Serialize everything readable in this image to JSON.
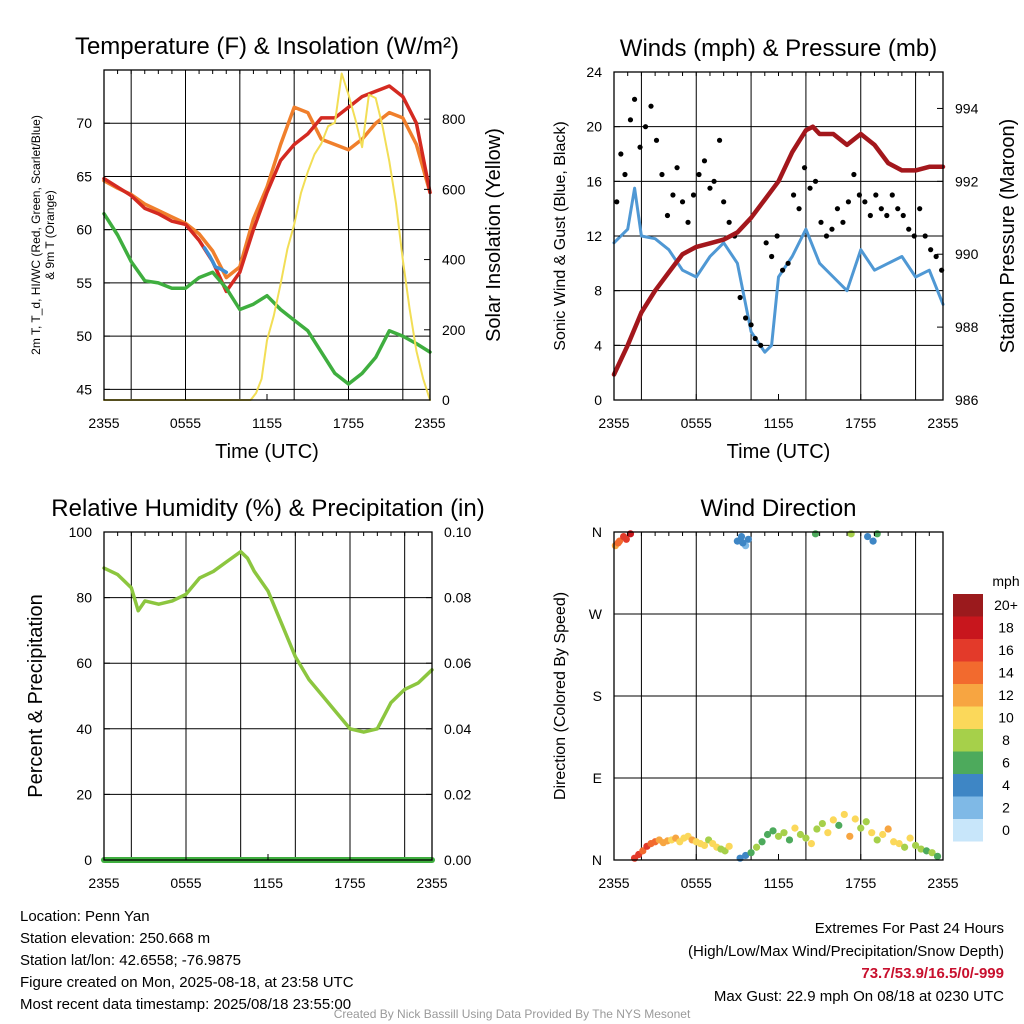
{
  "colors": {
    "temp": "#d42a21",
    "dewpoint": "#3fae3f",
    "heat_index": "#3d8ed6",
    "temp_9m": "#f07f2c",
    "insolation": "#f2de56",
    "wind": "#4f98d4",
    "gust": "#000000",
    "pressure": "#a3171c",
    "rh": "#8cc63f",
    "precip": "#3fae3f"
  },
  "charts": [
    {
      "id": "temp",
      "type": "line",
      "title": "Temperature (F) & Insolation (W/m²)",
      "xlabel": "Time (UTC)",
      "ylabel_lines": [
        "2m T, T_d, HI/WC (Red, Green, Scarlet/Blue)",
        "& 9m T (Orange)"
      ],
      "y2label": "Solar Insolation (Yellow)",
      "xticks": [
        "2355",
        "0555",
        "1155",
        "1755",
        "2355"
      ],
      "ylim": [
        44,
        75
      ],
      "yticks": [
        "45",
        "50",
        "55",
        "60",
        "65",
        "70"
      ],
      "y2lim": [
        0,
        940
      ],
      "y2ticks": [
        "0",
        "200",
        "400",
        "600",
        "800"
      ],
      "series": [
        {
          "key": "temp_9m",
          "x": [
            0,
            1,
            2,
            3,
            4,
            5,
            6,
            7,
            8,
            9,
            10,
            11,
            12,
            13,
            14,
            15,
            16,
            17,
            18,
            19,
            20,
            21,
            22,
            23,
            24
          ],
          "values": [
            64.6,
            63.9,
            63.3,
            62.4,
            61.8,
            61.2,
            60.6,
            59.6,
            58.0,
            55.5,
            56.5,
            61.0,
            64.0,
            68.0,
            71.5,
            71.0,
            68.5,
            68.0,
            67.5,
            68.5,
            70.0,
            71.0,
            70.5,
            68.0,
            63.5
          ]
        },
        {
          "key": "temp",
          "x": [
            0,
            1,
            2,
            3,
            4,
            5,
            6,
            7,
            8,
            9,
            10,
            11,
            12,
            13,
            14,
            15,
            16,
            17,
            18,
            19,
            20,
            21,
            22,
            23,
            24
          ],
          "values": [
            64.8,
            64.0,
            63.2,
            62.0,
            61.5,
            60.8,
            60.5,
            59.0,
            57.0,
            54.2,
            56.0,
            60.0,
            63.5,
            66.5,
            68.0,
            69.0,
            70.5,
            70.5,
            71.5,
            72.5,
            73.0,
            73.5,
            72.5,
            70.0,
            63.5
          ]
        },
        {
          "key": "heat_index",
          "x": [
            7.4,
            7.8,
            8.2,
            8.6,
            9.0
          ],
          "values": [
            58.3,
            57.5,
            56.5,
            56.3,
            56.0
          ]
        },
        {
          "key": "dewpoint",
          "x": [
            0,
            1,
            2,
            3,
            4,
            5,
            6,
            7,
            8,
            9,
            10,
            11,
            12,
            13,
            14,
            15,
            16,
            17,
            18,
            19,
            20,
            21,
            22,
            23,
            24
          ],
          "values": [
            61.5,
            59.5,
            57.0,
            55.2,
            55.0,
            54.5,
            54.5,
            55.5,
            56.0,
            54.5,
            52.5,
            53.0,
            53.8,
            52.5,
            51.5,
            50.5,
            48.5,
            46.5,
            45.5,
            46.5,
            48.0,
            50.5,
            50.0,
            49.3,
            48.5
          ]
        },
        {
          "key": "insolation",
          "axis": "y2",
          "x": [
            0,
            10.8,
            11.2,
            11.6,
            12,
            12.5,
            13,
            13.5,
            14,
            14.5,
            15,
            15.5,
            16,
            16.5,
            17,
            17.5,
            18,
            18.5,
            19,
            19.5,
            20,
            20.5,
            21,
            21.5,
            22,
            22.5,
            23,
            23.5,
            24
          ],
          "values": [
            0,
            0,
            20,
            60,
            170,
            240,
            330,
            430,
            500,
            590,
            650,
            700,
            730,
            780,
            790,
            930,
            870,
            800,
            720,
            870,
            860,
            780,
            680,
            560,
            400,
            260,
            140,
            60,
            0
          ]
        }
      ]
    },
    {
      "id": "wind",
      "type": "line+scatter",
      "title": "Winds (mph) & Pressure (mb)",
      "xlabel": "Time (UTC)",
      "ylabel": "Sonic Wind & Gust (Blue, Black)",
      "y2label": "Station Pressure (Maroon)",
      "xticks": [
        "2355",
        "0555",
        "1155",
        "1755",
        "2355"
      ],
      "ylim": [
        0,
        24
      ],
      "yticks": [
        "0",
        "4",
        "8",
        "12",
        "16",
        "20",
        "24"
      ],
      "y2lim": [
        986,
        995
      ],
      "y2ticks": [
        "986",
        "988",
        "990",
        "992",
        "994"
      ],
      "series": [
        {
          "key": "wind",
          "x": [
            0,
            1,
            1.5,
            2,
            3,
            4,
            5,
            6,
            7,
            8,
            9,
            10,
            11,
            11.5,
            12,
            13,
            14,
            15,
            16,
            17,
            18,
            19,
            20,
            21,
            22,
            23,
            24
          ],
          "values": [
            11.5,
            12.5,
            15.5,
            12.0,
            11.8,
            11.0,
            9.5,
            9.0,
            10.5,
            11.5,
            10.0,
            5.0,
            3.5,
            4.0,
            9.0,
            10.5,
            12.5,
            10.0,
            9.0,
            8.0,
            11.0,
            9.5,
            10.0,
            10.5,
            9.0,
            9.5,
            7.0
          ]
        },
        {
          "key": "gust",
          "x": [
            0.2,
            0.5,
            0.8,
            1.2,
            1.5,
            1.9,
            2.3,
            2.7,
            3.1,
            3.5,
            3.9,
            4.3,
            4.6,
            5.0,
            5.4,
            5.8,
            6.2,
            6.6,
            7.0,
            7.3,
            7.7,
            8.0,
            8.4,
            8.8,
            9.2,
            9.6,
            10.0,
            10.3,
            10.7,
            11.1,
            11.5,
            11.9,
            12.3,
            12.7,
            13.1,
            13.5,
            13.9,
            14.3,
            14.7,
            15.1,
            15.5,
            15.9,
            16.3,
            16.7,
            17.1,
            17.5,
            17.9,
            18.3,
            18.7,
            19.1,
            19.5,
            19.9,
            20.3,
            20.7,
            21.1,
            21.5,
            21.9,
            22.3,
            22.7,
            23.1,
            23.5,
            23.9
          ],
          "values": [
            14.5,
            18.0,
            16.5,
            20.5,
            22.0,
            18.5,
            20.0,
            21.5,
            19.0,
            16.5,
            13.5,
            15.0,
            17.0,
            14.5,
            13.0,
            15.0,
            16.5,
            17.5,
            15.5,
            16.0,
            19.0,
            14.5,
            13.0,
            12.0,
            7.5,
            6.0,
            5.5,
            4.5,
            4.0,
            11.5,
            10.5,
            12.0,
            9.5,
            10.0,
            15.0,
            14.0,
            17.0,
            15.5,
            16.0,
            13.0,
            12.0,
            12.5,
            14.0,
            13.0,
            14.5,
            16.5,
            15.0,
            14.5,
            13.5,
            15.0,
            14.0,
            13.5,
            15.0,
            14.0,
            13.5,
            12.5,
            12.0,
            14.0,
            12.0,
            11.0,
            10.5,
            9.5
          ]
        },
        {
          "key": "pressure",
          "axis": "y2",
          "x": [
            0,
            1,
            2,
            3,
            4,
            5,
            6,
            7,
            8,
            9,
            10,
            11,
            12,
            13,
            14,
            14.5,
            15,
            16,
            17,
            18,
            19,
            20,
            21,
            22,
            23,
            24
          ],
          "values": [
            986.7,
            987.5,
            988.4,
            989.0,
            989.5,
            990.0,
            990.2,
            990.3,
            990.4,
            990.6,
            991.0,
            991.5,
            992.0,
            992.8,
            993.4,
            993.5,
            993.3,
            993.3,
            993.0,
            993.3,
            993.0,
            992.5,
            992.3,
            992.3,
            992.4,
            992.4
          ]
        }
      ]
    },
    {
      "id": "rh",
      "type": "line",
      "title": "Relative Humidity (%) & Precipitation (in)",
      "ylabel": "Percent & Precipitation",
      "xticks": [
        "2355",
        "0555",
        "1155",
        "1755",
        "2355"
      ],
      "ylim": [
        0,
        100
      ],
      "yticks": [
        "0",
        "20",
        "40",
        "60",
        "80",
        "100"
      ],
      "y2lim": [
        0,
        0.1
      ],
      "y2ticks": [
        "0.00",
        "0.02",
        "0.04",
        "0.06",
        "0.08",
        "0.10"
      ],
      "series": [
        {
          "key": "rh",
          "x": [
            0,
            1,
            2,
            2.5,
            3,
            4,
            5,
            6,
            7,
            8,
            9,
            10,
            10.5,
            11,
            12,
            13,
            14,
            15,
            16,
            17,
            18,
            19,
            20,
            21,
            22,
            23,
            24
          ],
          "values": [
            89,
            87,
            83,
            76,
            79,
            78,
            79,
            81,
            86,
            88,
            91,
            94,
            92,
            88,
            82,
            72,
            62,
            55,
            50,
            45,
            40,
            39,
            40,
            48,
            52,
            54,
            58
          ]
        },
        {
          "key": "precip",
          "axis": "y2",
          "x": [
            0,
            24
          ],
          "values": [
            0.0,
            0.0
          ]
        }
      ]
    },
    {
      "id": "dir",
      "type": "scatter",
      "title": "Wind Direction",
      "ylabel": "Direction (Colored By Speed)",
      "xticks": [
        "2355",
        "0555",
        "1155",
        "1755",
        "2355"
      ],
      "ylim": [
        0,
        360
      ],
      "yticks": [
        "N",
        "E",
        "S",
        "W",
        "N"
      ],
      "legend": {
        "title": "mph",
        "labels": [
          "20+",
          "18",
          "16",
          "14",
          "12",
          "10",
          "8",
          "6",
          "4",
          "2",
          "0"
        ],
        "colors": [
          "#9b1a1d",
          "#c8161d",
          "#e33a2a",
          "#f26a2e",
          "#f7a541",
          "#fbd85a",
          "#a6d04a",
          "#4daa5c",
          "#3e86c5",
          "#7fb9e6",
          "#c8e6fa"
        ]
      },
      "points": [
        {
          "x": 0.1,
          "y": 345,
          "speed": 12
        },
        {
          "x": 0.4,
          "y": 350,
          "speed": 14
        },
        {
          "x": 0.7,
          "y": 355,
          "speed": 16
        },
        {
          "x": 0.9,
          "y": 352,
          "speed": 15
        },
        {
          "x": 1.2,
          "y": 358,
          "speed": 17
        },
        {
          "x": 0.3,
          "y": 348,
          "speed": 13
        },
        {
          "x": 1.5,
          "y": 2,
          "speed": 15
        },
        {
          "x": 1.8,
          "y": 6,
          "speed": 16
        },
        {
          "x": 2.1,
          "y": 10,
          "speed": 14
        },
        {
          "x": 2.4,
          "y": 15,
          "speed": 15
        },
        {
          "x": 2.7,
          "y": 18,
          "speed": 13
        },
        {
          "x": 3.0,
          "y": 20,
          "speed": 14
        },
        {
          "x": 3.3,
          "y": 22,
          "speed": 12
        },
        {
          "x": 3.6,
          "y": 19,
          "speed": 11
        },
        {
          "x": 3.9,
          "y": 21,
          "speed": 12
        },
        {
          "x": 4.2,
          "y": 22,
          "speed": 10
        },
        {
          "x": 4.5,
          "y": 24,
          "speed": 11
        },
        {
          "x": 4.8,
          "y": 20,
          "speed": 10
        },
        {
          "x": 5.1,
          "y": 24,
          "speed": 9
        },
        {
          "x": 5.4,
          "y": 26,
          "speed": 10
        },
        {
          "x": 5.7,
          "y": 22,
          "speed": 11
        },
        {
          "x": 6.0,
          "y": 20,
          "speed": 10
        },
        {
          "x": 6.3,
          "y": 18,
          "speed": 9
        },
        {
          "x": 6.6,
          "y": 16,
          "speed": 10
        },
        {
          "x": 6.9,
          "y": 22,
          "speed": 8
        },
        {
          "x": 7.2,
          "y": 18,
          "speed": 9
        },
        {
          "x": 7.5,
          "y": 14,
          "speed": 10
        },
        {
          "x": 7.8,
          "y": 12,
          "speed": 8
        },
        {
          "x": 8.1,
          "y": 10,
          "speed": 7
        },
        {
          "x": 8.4,
          "y": 15,
          "speed": 9
        },
        {
          "x": 9.0,
          "y": 350,
          "speed": 4
        },
        {
          "x": 9.3,
          "y": 355,
          "speed": 3
        },
        {
          "x": 9.6,
          "y": 345,
          "speed": 2
        },
        {
          "x": 9.8,
          "y": 352,
          "speed": 4
        },
        {
          "x": 9.4,
          "y": 348,
          "speed": 3
        },
        {
          "x": 9.2,
          "y": 2,
          "speed": 4
        },
        {
          "x": 9.6,
          "y": 5,
          "speed": 3
        },
        {
          "x": 10.0,
          "y": 8,
          "speed": 5
        },
        {
          "x": 10.4,
          "y": 14,
          "speed": 7
        },
        {
          "x": 10.8,
          "y": 20,
          "speed": 6
        },
        {
          "x": 11.2,
          "y": 28,
          "speed": 5
        },
        {
          "x": 11.6,
          "y": 32,
          "speed": 6
        },
        {
          "x": 12.0,
          "y": 26,
          "speed": 7
        },
        {
          "x": 12.4,
          "y": 30,
          "speed": 8
        },
        {
          "x": 12.8,
          "y": 22,
          "speed": 6
        },
        {
          "x": 13.2,
          "y": 35,
          "speed": 9
        },
        {
          "x": 13.6,
          "y": 28,
          "speed": 7
        },
        {
          "x": 14.0,
          "y": 24,
          "speed": 8
        },
        {
          "x": 14.4,
          "y": 18,
          "speed": 10
        },
        {
          "x": 14.8,
          "y": 34,
          "speed": 8
        },
        {
          "x": 15.2,
          "y": 40,
          "speed": 7
        },
        {
          "x": 15.6,
          "y": 30,
          "speed": 9
        },
        {
          "x": 16.0,
          "y": 44,
          "speed": 10
        },
        {
          "x": 16.4,
          "y": 38,
          "speed": 6
        },
        {
          "x": 16.8,
          "y": 50,
          "speed": 9
        },
        {
          "x": 17.2,
          "y": 26,
          "speed": 11
        },
        {
          "x": 17.6,
          "y": 45,
          "speed": 10
        },
        {
          "x": 18.0,
          "y": 35,
          "speed": 8
        },
        {
          "x": 18.4,
          "y": 42,
          "speed": 7
        },
        {
          "x": 18.8,
          "y": 30,
          "speed": 10
        },
        {
          "x": 19.2,
          "y": 22,
          "speed": 8
        },
        {
          "x": 19.6,
          "y": 28,
          "speed": 9
        },
        {
          "x": 20.0,
          "y": 34,
          "speed": 11
        },
        {
          "x": 20.4,
          "y": 20,
          "speed": 10
        },
        {
          "x": 20.8,
          "y": 18,
          "speed": 9
        },
        {
          "x": 21.2,
          "y": 14,
          "speed": 8
        },
        {
          "x": 21.6,
          "y": 24,
          "speed": 10
        },
        {
          "x": 22.0,
          "y": 16,
          "speed": 7
        },
        {
          "x": 22.4,
          "y": 12,
          "speed": 8
        },
        {
          "x": 22.8,
          "y": 10,
          "speed": 6
        },
        {
          "x": 23.2,
          "y": 8,
          "speed": 7
        },
        {
          "x": 23.6,
          "y": 4,
          "speed": 6
        },
        {
          "x": 14.7,
          "y": 358,
          "speed": 6
        },
        {
          "x": 17.3,
          "y": 358,
          "speed": 8
        },
        {
          "x": 18.5,
          "y": 355,
          "speed": 4
        },
        {
          "x": 18.9,
          "y": 350,
          "speed": 3
        },
        {
          "x": 19.2,
          "y": 358,
          "speed": 6
        }
      ]
    }
  ],
  "footer": {
    "location": "Location: Penn Yan",
    "elevation": "Station elevation: 250.668 m",
    "latlon": "Station lat/lon: 42.6558; -76.9875",
    "created": "Figure created on Mon, 2025-08-18, at 23:58 UTC",
    "recent": "Most recent data timestamp: 2025/08/18 23:55:00",
    "extremes_title": "Extremes For Past 24 Hours",
    "extremes_sub": "(High/Low/Max Wind/Precipitation/Snow Depth)",
    "extremes_values": "73.7/53.9/16.5/0/-999",
    "max_gust": "Max Gust: 22.9 mph On 08/18 at 0230 UTC",
    "credit": "Created By Nick Bassill Using Data Provided By The NYS Mesonet"
  }
}
